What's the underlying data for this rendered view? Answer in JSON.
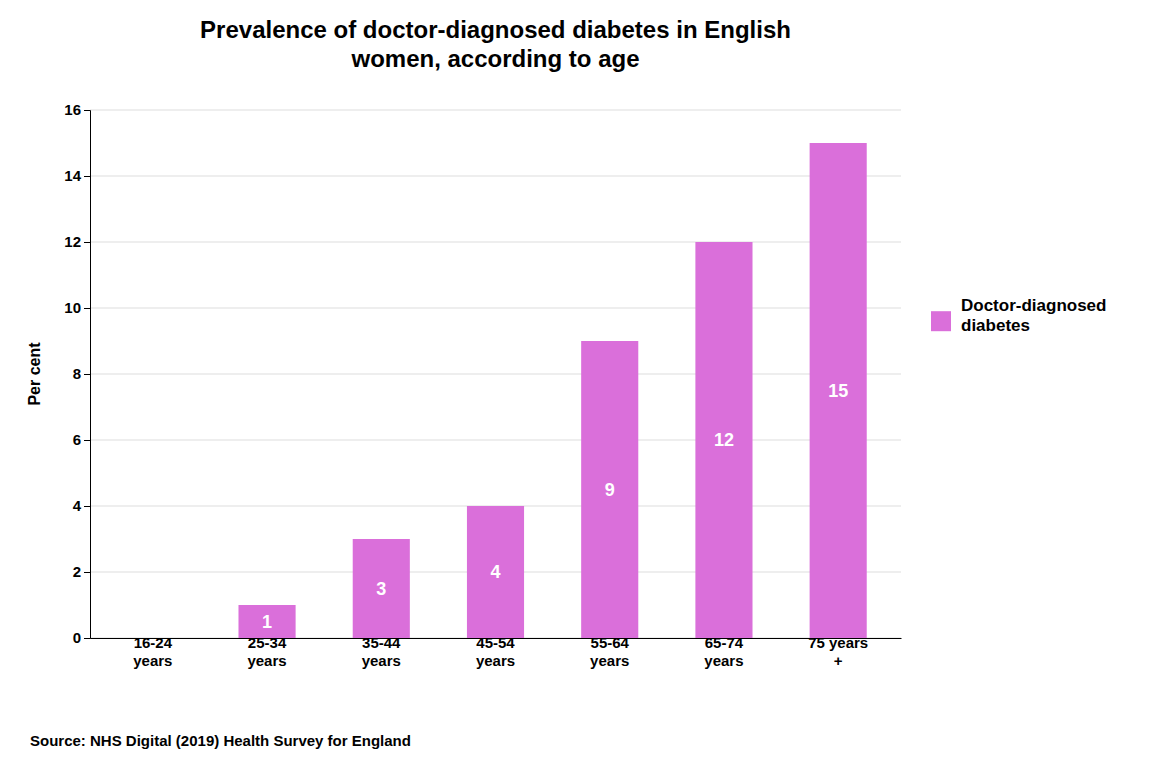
{
  "chart_data": {
    "type": "bar",
    "title": "Prevalence of doctor-diagnosed diabetes in English\nwomen, according to age",
    "categories": [
      "16-24\nyears",
      "25-34\nyears",
      "35-44\nyears",
      "45-54\nyears",
      "55-64\nyears",
      "65-74\nyears",
      "75 years\n+"
    ],
    "series": [
      {
        "name": "Doctor-diagnosed\ndiabetes",
        "color": "#da6fda",
        "values": [
          0,
          1,
          3,
          4,
          9,
          12,
          15
        ]
      }
    ],
    "ylabel": "Per cent",
    "ylim": [
      0,
      16
    ],
    "yticks": [
      0,
      2,
      4,
      6,
      8,
      10,
      12,
      14,
      16
    ],
    "grid": true,
    "legend": "right",
    "data_labels": true,
    "annotations": [
      "Source: NHS Digital (2019) Health Survey for England"
    ]
  }
}
